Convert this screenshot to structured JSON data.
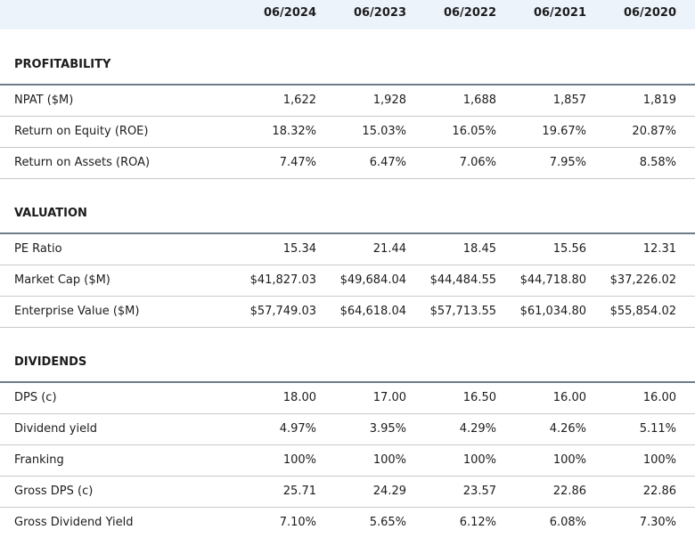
{
  "header": {
    "columns": [
      "06/2024",
      "06/2023",
      "06/2022",
      "06/2021",
      "06/2020"
    ]
  },
  "sections": [
    {
      "title": "PROFITABILITY",
      "rows": [
        {
          "label": "NPAT ($M)",
          "values": [
            "1,622",
            "1,928",
            "1,688",
            "1,857",
            "1,819"
          ]
        },
        {
          "label": "Return on Equity (ROE)",
          "values": [
            "18.32%",
            "15.03%",
            "16.05%",
            "19.67%",
            "20.87%"
          ]
        },
        {
          "label": "Return on Assets (ROA)",
          "values": [
            "7.47%",
            "6.47%",
            "7.06%",
            "7.95%",
            "8.58%"
          ]
        }
      ]
    },
    {
      "title": "VALUATION",
      "rows": [
        {
          "label": "PE Ratio",
          "values": [
            "15.34",
            "21.44",
            "18.45",
            "15.56",
            "12.31"
          ]
        },
        {
          "label": "Market Cap ($M)",
          "values": [
            "$41,827.03",
            "$49,684.04",
            "$44,484.55",
            "$44,718.80",
            "$37,226.02"
          ]
        },
        {
          "label": "Enterprise Value ($M)",
          "values": [
            "$57,749.03",
            "$64,618.04",
            "$57,713.55",
            "$61,034.80",
            "$55,854.02"
          ]
        }
      ]
    },
    {
      "title": "DIVIDENDS",
      "rows": [
        {
          "label": "DPS (c)",
          "values": [
            "18.00",
            "17.00",
            "16.50",
            "16.00",
            "16.00"
          ]
        },
        {
          "label": "Dividend yield",
          "values": [
            "4.97%",
            "3.95%",
            "4.29%",
            "4.26%",
            "5.11%"
          ]
        },
        {
          "label": "Franking",
          "values": [
            "100%",
            "100%",
            "100%",
            "100%",
            "100%"
          ]
        },
        {
          "label": "Gross DPS (c)",
          "values": [
            "25.71",
            "24.29",
            "23.57",
            "22.86",
            "22.86"
          ]
        },
        {
          "label": "Gross Dividend Yield",
          "values": [
            "7.10%",
            "5.65%",
            "6.12%",
            "6.08%",
            "7.30%"
          ]
        }
      ]
    }
  ]
}
